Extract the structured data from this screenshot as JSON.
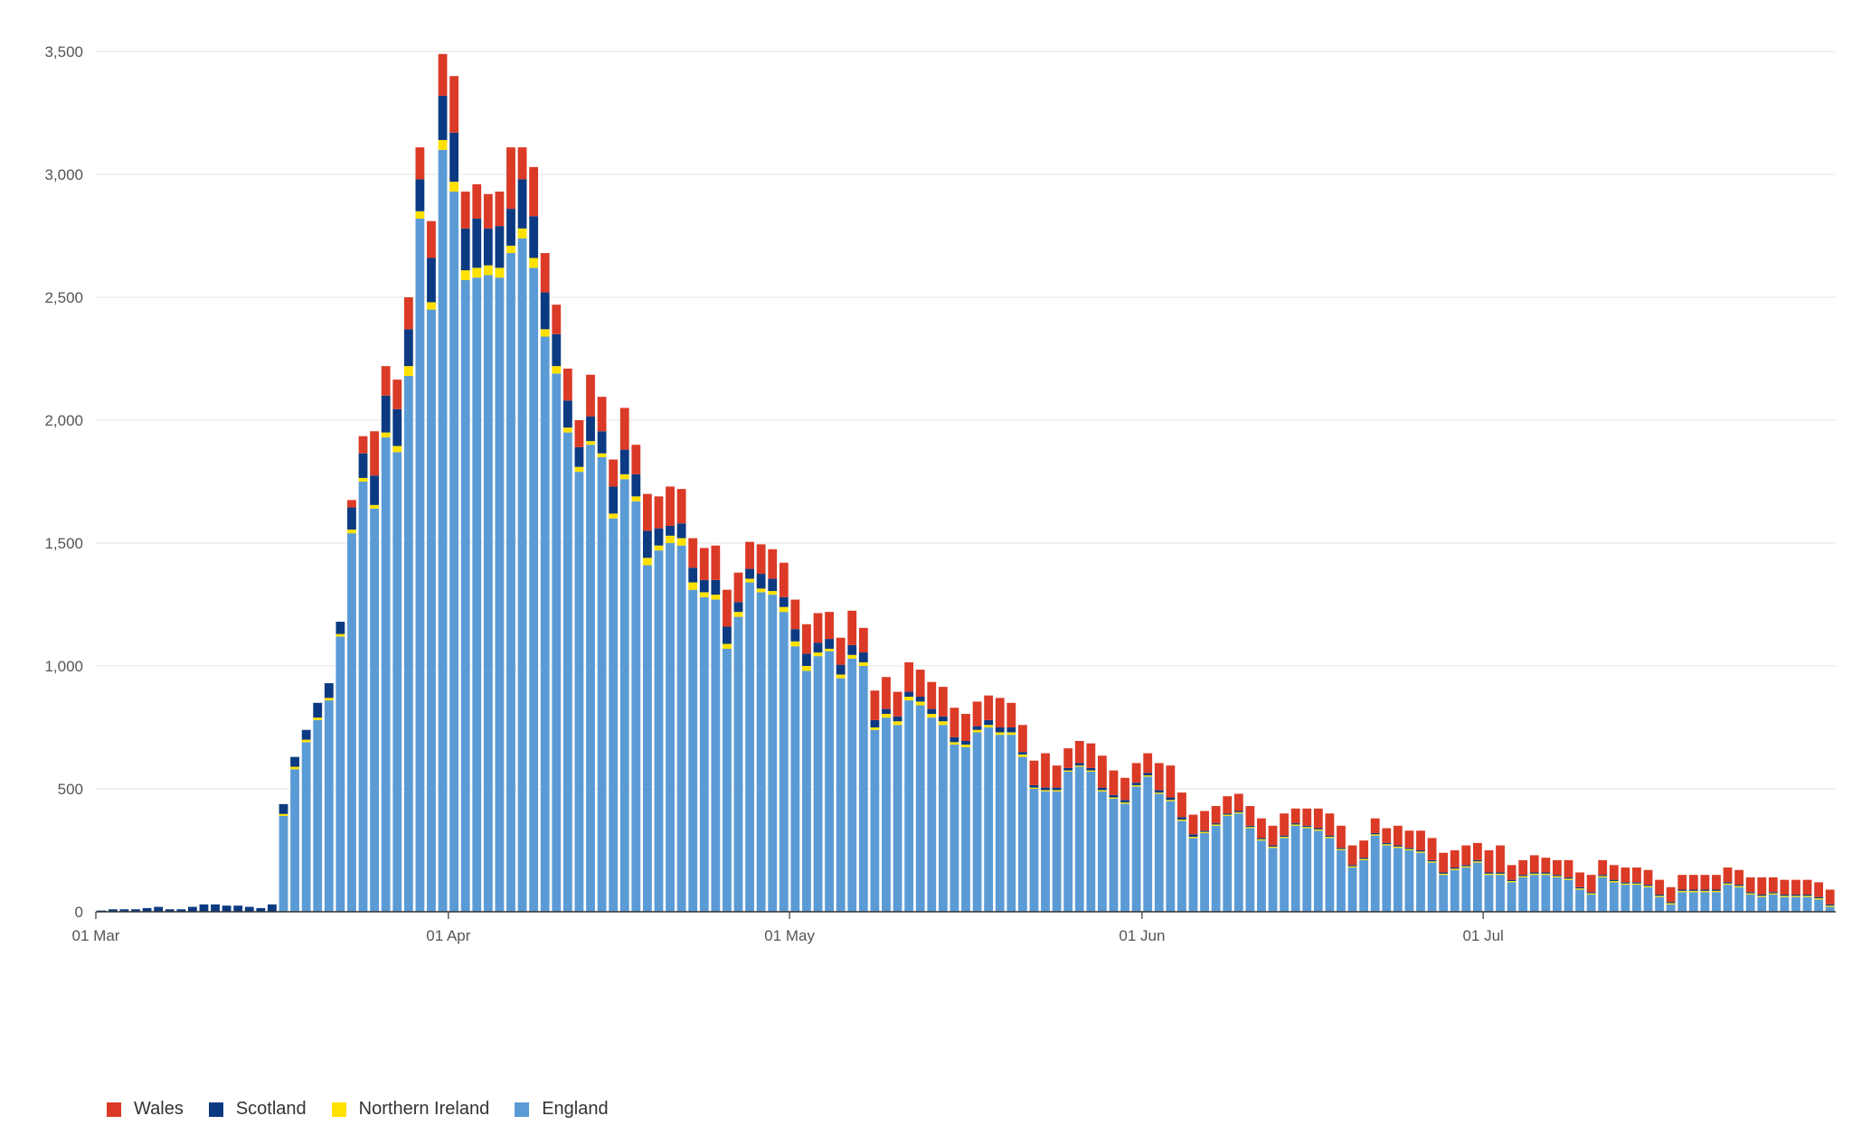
{
  "chart_data": {
    "type": "bar",
    "stacked": true,
    "title": "",
    "xlabel": "",
    "ylabel": "",
    "ylim": [
      0,
      3500
    ],
    "y_ticks": [
      0,
      500,
      1000,
      1500,
      2000,
      2500,
      3000,
      3500
    ],
    "y_tick_labels": [
      "0",
      "500",
      "1,000",
      "1,500",
      "2,000",
      "2,500",
      "3,000",
      "3,500"
    ],
    "x_ticks": [
      {
        "date": "2020-03-01",
        "label": "01 Mar"
      },
      {
        "date": "2020-04-01",
        "label": "01 Apr"
      },
      {
        "date": "2020-05-01",
        "label": "01 May"
      },
      {
        "date": "2020-06-01",
        "label": "01 Jun"
      },
      {
        "date": "2020-07-01",
        "label": "01 Jul"
      }
    ],
    "grid": true,
    "legend_position": "bottom-left",
    "start_date": "2020-03-01",
    "stack_order": [
      "England",
      "Northern Ireland",
      "Scotland",
      "Wales"
    ],
    "legend_order": [
      "Wales",
      "Scotland",
      "Northern Ireland",
      "England"
    ],
    "colors": {
      "England": "#5b9bd5",
      "Northern Ireland": "#ffe100",
      "Scotland": "#0b3a82",
      "Wales": "#db3a26"
    },
    "series": {
      "England": [
        0,
        0,
        0,
        0,
        0,
        0,
        0,
        0,
        0,
        0,
        0,
        0,
        0,
        0,
        0,
        0,
        390,
        580,
        690,
        780,
        860,
        1120,
        1540,
        1750,
        1640,
        1930,
        1870,
        2180,
        2820,
        2450,
        3100,
        2930,
        2570,
        2580,
        2590,
        2580,
        2680,
        2740,
        2620,
        2340,
        2190,
        1950,
        1790,
        1900,
        1850,
        1600,
        1760,
        1670,
        1410,
        1470,
        1500,
        1490,
        1310,
        1280,
        1270,
        1070,
        1200,
        1340,
        1300,
        1290,
        1220,
        1080,
        980,
        1040,
        1060,
        950,
        1030,
        1000,
        740,
        790,
        760,
        860,
        840,
        790,
        760,
        680,
        670,
        730,
        750,
        720,
        720,
        630,
        500,
        490,
        490,
        570,
        590,
        570,
        490,
        460,
        440,
        510,
        550,
        480,
        450,
        370,
        300,
        320,
        350,
        390,
        400,
        340,
        290,
        260,
        300,
        350,
        340,
        330,
        300,
        250,
        180,
        210,
        310,
        270,
        260,
        250,
        240,
        200,
        150,
        170,
        180,
        200,
        150,
        150,
        120,
        140,
        150,
        150,
        140,
        130,
        90,
        70,
        140,
        120,
        110,
        110,
        100,
        60,
        30,
        80,
        80,
        80,
        80,
        110,
        100,
        70,
        60,
        70,
        60,
        60,
        60,
        50,
        20
      ],
      "Northern Ireland": [
        0,
        0,
        0,
        0,
        0,
        0,
        0,
        0,
        0,
        0,
        0,
        0,
        0,
        0,
        0,
        0,
        8,
        10,
        10,
        10,
        10,
        10,
        15,
        15,
        15,
        20,
        25,
        40,
        30,
        30,
        40,
        40,
        40,
        40,
        40,
        40,
        30,
        40,
        40,
        30,
        30,
        20,
        20,
        15,
        15,
        20,
        20,
        20,
        30,
        20,
        30,
        30,
        30,
        20,
        20,
        20,
        20,
        15,
        15,
        15,
        20,
        20,
        20,
        15,
        10,
        15,
        15,
        15,
        10,
        15,
        15,
        15,
        15,
        15,
        15,
        10,
        10,
        10,
        10,
        10,
        10,
        10,
        5,
        5,
        5,
        5,
        5,
        5,
        5,
        5,
        5,
        5,
        5,
        5,
        5,
        5,
        5,
        5,
        5,
        5,
        5,
        5,
        5,
        5,
        5,
        5,
        5,
        5,
        5,
        5,
        5,
        5,
        5,
        5,
        5,
        5,
        5,
        5,
        5,
        5,
        5,
        5,
        5,
        5,
        5,
        5,
        5,
        5,
        5,
        5,
        5,
        5,
        5,
        5,
        5,
        5,
        5,
        5,
        5,
        5,
        5,
        5,
        5,
        5,
        5,
        5,
        5,
        5,
        5,
        5,
        5,
        5,
        5
      ],
      "Scotland": [
        5,
        10,
        10,
        10,
        15,
        20,
        10,
        10,
        20,
        30,
        30,
        25,
        25,
        20,
        15,
        30,
        40,
        40,
        40,
        60,
        60,
        50,
        90,
        100,
        120,
        150,
        150,
        150,
        130,
        180,
        180,
        200,
        170,
        200,
        150,
        170,
        150,
        200,
        170,
        150,
        130,
        110,
        80,
        100,
        90,
        110,
        100,
        90,
        110,
        70,
        40,
        60,
        60,
        50,
        60,
        70,
        40,
        40,
        60,
        50,
        40,
        50,
        50,
        40,
        40,
        40,
        40,
        40,
        30,
        20,
        20,
        20,
        20,
        20,
        20,
        20,
        15,
        15,
        20,
        20,
        20,
        10,
        10,
        10,
        10,
        10,
        10,
        10,
        10,
        10,
        10,
        10,
        10,
        10,
        10,
        10,
        10,
        5,
        5,
        5,
        5,
        5,
        5,
        5,
        5,
        5,
        5,
        5,
        5,
        5,
        5,
        5,
        5,
        5,
        5,
        5,
        5,
        5,
        5,
        5,
        5,
        5,
        5,
        5,
        5,
        5,
        5,
        5,
        5,
        5,
        5,
        5,
        5,
        5,
        5,
        5,
        5,
        5,
        5,
        5,
        5,
        5,
        5,
        5,
        5,
        5,
        5,
        5,
        5,
        5,
        5,
        5,
        5
      ],
      "Wales": [
        0,
        0,
        0,
        0,
        0,
        0,
        0,
        0,
        0,
        0,
        0,
        0,
        0,
        0,
        0,
        0,
        0,
        0,
        0,
        0,
        0,
        0,
        30,
        70,
        180,
        120,
        120,
        130,
        130,
        150,
        170,
        230,
        150,
        140,
        140,
        140,
        250,
        130,
        200,
        160,
        120,
        130,
        110,
        170,
        140,
        110,
        170,
        120,
        150,
        130,
        160,
        140,
        120,
        130,
        140,
        150,
        120,
        110,
        120,
        120,
        140,
        120,
        120,
        120,
        110,
        110,
        140,
        100,
        120,
        130,
        100,
        120,
        110,
        110,
        120,
        120,
        110,
        100,
        100,
        120,
        100,
        110,
        100,
        140,
        90,
        80,
        90,
        100,
        130,
        100,
        90,
        80,
        80,
        110,
        130,
        100,
        80,
        80,
        70,
        70,
        70,
        80,
        80,
        80,
        90,
        60,
        70,
        80,
        90,
        90,
        80,
        70,
        60,
        60,
        80,
        70,
        80,
        90,
        80,
        70,
        80,
        70,
        90,
        110,
        60,
        60,
        70,
        60,
        60,
        70,
        60,
        70,
        60,
        60,
        60,
        60,
        60,
        60,
        60,
        60,
        60,
        60,
        60,
        60,
        60,
        60,
        70,
        60,
        60,
        60,
        60,
        60,
        60
      ]
    }
  }
}
